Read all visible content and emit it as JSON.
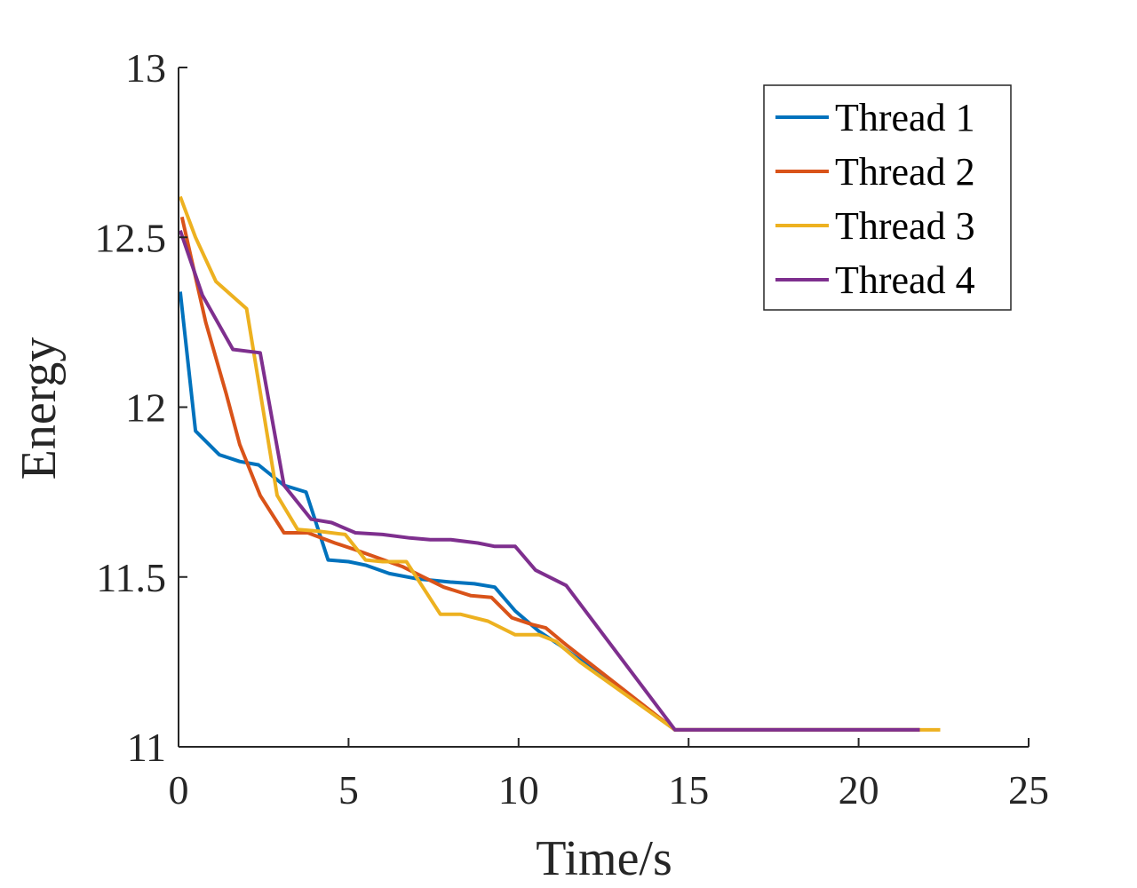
{
  "chart_data": {
    "type": "line",
    "title": "",
    "xlabel": "Time/s",
    "ylabel": "Energy",
    "xlim": [
      0,
      25
    ],
    "ylim": [
      11,
      13
    ],
    "xticks": [
      0,
      5,
      10,
      15,
      20,
      25
    ],
    "yticks": [
      11,
      11.5,
      12,
      12.5,
      13
    ],
    "xtick_labels": [
      "0",
      "5",
      "10",
      "15",
      "20",
      "25"
    ],
    "ytick_labels": [
      "11",
      "11.5",
      "12",
      "12.5",
      "13"
    ],
    "grid": false,
    "legend_position": "top-right",
    "series": [
      {
        "name": "Thread 1",
        "color": "#0072BD",
        "x": [
          0.05,
          0.5,
          1.2,
          1.8,
          2.35,
          3.1,
          3.75,
          4.4,
          5.0,
          5.5,
          6.2,
          7.0,
          8.0,
          8.7,
          9.3,
          9.9,
          10.6,
          11.2,
          14.6,
          21.8
        ],
        "y": [
          12.34,
          11.93,
          11.86,
          11.84,
          11.83,
          11.77,
          11.75,
          11.55,
          11.545,
          11.535,
          11.51,
          11.495,
          11.485,
          11.48,
          11.47,
          11.4,
          11.34,
          11.3,
          11.05,
          11.05
        ]
      },
      {
        "name": "Thread 2",
        "color": "#D95319",
        "x": [
          0.1,
          0.8,
          1.4,
          1.8,
          2.4,
          3.1,
          3.8,
          4.6,
          5.2,
          5.9,
          6.6,
          7.2,
          7.8,
          8.6,
          9.2,
          9.8,
          10.4,
          10.8,
          11.4,
          14.6,
          21.8
        ],
        "y": [
          12.56,
          12.25,
          12.04,
          11.89,
          11.74,
          11.63,
          11.63,
          11.6,
          11.58,
          11.555,
          11.53,
          11.5,
          11.47,
          11.445,
          11.44,
          11.38,
          11.36,
          11.35,
          11.3,
          11.05,
          11.05
        ]
      },
      {
        "name": "Thread 3",
        "color": "#EDB120",
        "x": [
          0.05,
          0.5,
          1.1,
          2.0,
          2.9,
          3.5,
          4.1,
          4.9,
          5.5,
          6.0,
          6.7,
          7.7,
          8.3,
          9.1,
          9.9,
          10.6,
          11.1,
          11.8,
          14.6,
          21.8,
          22.4
        ],
        "y": [
          12.62,
          12.5,
          12.37,
          12.29,
          11.74,
          11.64,
          11.635,
          11.625,
          11.55,
          11.545,
          11.545,
          11.39,
          11.39,
          11.37,
          11.33,
          11.33,
          11.31,
          11.25,
          11.05,
          11.05,
          11.05
        ]
      },
      {
        "name": "Thread 4",
        "color": "#7E2F8E",
        "x": [
          0.05,
          0.7,
          1.6,
          2.4,
          3.1,
          3.9,
          4.5,
          5.2,
          6.0,
          6.8,
          7.4,
          8.0,
          8.8,
          9.3,
          9.9,
          10.5,
          11.4,
          14.6,
          21.8
        ],
        "y": [
          12.52,
          12.33,
          12.17,
          12.16,
          11.77,
          11.67,
          11.66,
          11.63,
          11.625,
          11.615,
          11.61,
          11.61,
          11.6,
          11.59,
          11.59,
          11.52,
          11.475,
          11.05,
          11.05
        ]
      }
    ]
  }
}
